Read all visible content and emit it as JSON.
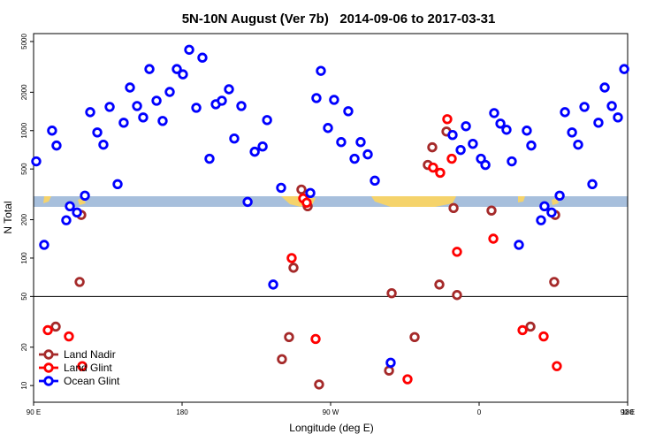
{
  "chart_data": {
    "type": "scatter",
    "title": "5N-10N August (Ver 7b)   2014-09-06 to 2017-03-31",
    "x_label": "Longitude (deg E)",
    "y_label": "N Total",
    "xlim": [
      90,
      450
    ],
    "xticks": [
      {
        "value": 90,
        "label": "90 E"
      },
      180,
      {
        "value": 270,
        "label": "90 W"
      },
      {
        "value": 360,
        "label": "0"
      },
      {
        "value": 450,
        "label": "90 E"
      },
      {
        "value": 540,
        "label": "180"
      }
    ],
    "ylim": [
      7.4,
      5770
    ],
    "y_log": true,
    "yticks": [
      10,
      20,
      50,
      100,
      200,
      500,
      1000,
      2000,
      5000
    ],
    "hline": 50,
    "legend": "lower left",
    "series": [
      {
        "name": "Land Nadir",
        "color": "#a52a2a",
        "x": [
          103.4,
          118.9,
          117.9,
          240.5,
          244.8,
          247.5,
          252.3,
          256.1,
          263.0,
          305.4,
          307.0,
          320.9,
          328.9,
          331.6,
          335.9,
          340.2,
          344.5,
          346.6,
          367.5,
          391.1,
          405.5,
          406.1
        ],
        "values": [
          29,
          218,
          65,
          16.1,
          24,
          84,
          345,
          255,
          10.2,
          13.1,
          53,
          24,
          538,
          740,
          62,
          984,
          247,
          51.3,
          236,
          29,
          65,
          218
        ]
      },
      {
        "name": "Land Glint",
        "color": "#ff0000",
        "x": [
          98.6,
          111.4,
          119.5,
          246.4,
          253.4,
          255.5,
          260.9,
          316.6,
          332.1,
          336.4,
          340.7,
          343.4,
          346.6,
          368.6,
          386.3,
          399.1,
          407.1
        ],
        "values": [
          27.2,
          24.3,
          14.2,
          100,
          294,
          272,
          23.2,
          11.2,
          513,
          467,
          1230,
          602,
          112,
          142,
          27.2,
          24.3,
          14.2
        ]
      },
      {
        "name": "Ocean Glint",
        "color": "#0000ff",
        "x": [
          91.6,
          96.4,
          101.2,
          103.9,
          109.8,
          112.0,
          116.3,
          121.1,
          124.3,
          128.6,
          132.3,
          136.1,
          140.9,
          144.6,
          148.4,
          152.7,
          156.4,
          160.2,
          164.5,
          168.2,
          172.5,
          176.8,
          180.5,
          184.3,
          188.6,
          192.3,
          196.6,
          200.4,
          204.1,
          208.4,
          211.6,
          215.9,
          219.7,
          224.0,
          228.8,
          231.5,
          235.2,
          240.0,
          257.7,
          261.4,
          264.1,
          268.4,
          272.1,
          276.4,
          280.7,
          284.5,
          288.2,
          292.5,
          296.8,
          306.4,
          343.9,
          348.8,
          352.0,
          356.2,
          361.1,
          363.8,
          369.1,
          372.9,
          376.6,
          379.8,
          384.1,
          388.9,
          391.6,
          397.5,
          399.6,
          403.9,
          408.8,
          412.0,
          416.3,
          420.0,
          423.8,
          428.6,
          432.3,
          436.1,
          440.4,
          444.1,
          447.9
        ],
        "values": [
          574,
          127,
          1000,
          764,
          198,
          255,
          228,
          309,
          1396,
          968,
          776,
          1535,
          380,
          1153,
          2178,
          1560,
          1269,
          3040,
          1716,
          1191,
          2011,
          3040,
          2763,
          4310,
          1511,
          3735,
          602,
          1610,
          1716,
          2110,
          867,
          1560,
          276,
          683,
          751,
          1210,
          62,
          356,
          324,
          1800,
          2944,
          1049,
          1743,
          813,
          1419,
          602,
          813,
          651,
          405,
          15.1,
          924,
          705,
          1083,
          788,
          602,
          538,
          1373,
          1135,
          1016,
          574,
          127,
          1000,
          764,
          198,
          255,
          228,
          309,
          1396,
          968,
          776,
          1535,
          380,
          1153,
          2178,
          1560,
          1269,
          3040
        ]
      }
    ]
  }
}
